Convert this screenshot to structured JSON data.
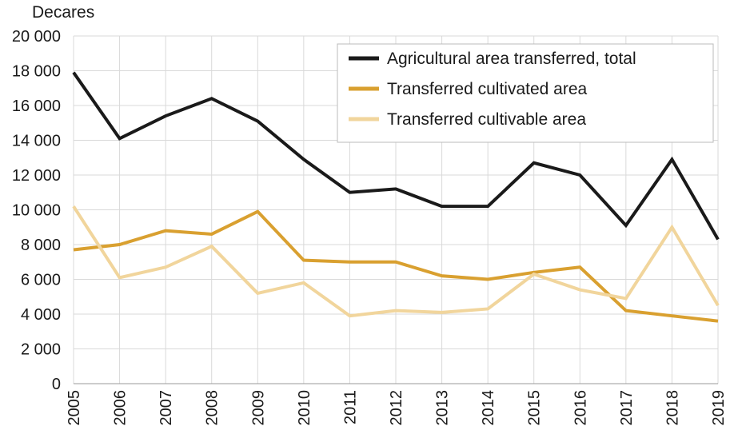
{
  "chart_data": {
    "type": "line",
    "title": "",
    "ylabel": "Decares",
    "xlabel": "",
    "x": [
      2005,
      2006,
      2007,
      2008,
      2009,
      2010,
      2011,
      2012,
      2013,
      2014,
      2015,
      2016,
      2017,
      2018,
      2019
    ],
    "ylim": [
      0,
      20000
    ],
    "yticks": [
      0,
      2000,
      4000,
      6000,
      8000,
      10000,
      12000,
      14000,
      16000,
      18000,
      20000
    ],
    "ytick_labels": [
      "0",
      "2 000",
      "4 000",
      "6 000",
      "8 000",
      "10 000",
      "12 000",
      "14 000",
      "16 000",
      "18 000",
      "20 000"
    ],
    "grid": true,
    "legend_position": "top-right",
    "series": [
      {
        "name": "Agricultural area transferred, total",
        "color": "#1a1a1a",
        "values": [
          17900,
          14100,
          15400,
          16400,
          15100,
          12900,
          11000,
          11200,
          10200,
          10200,
          12700,
          12000,
          9100,
          12900,
          8300
        ]
      },
      {
        "name": "Transferred cultivated area",
        "color": "#d9a030",
        "values": [
          7700,
          8000,
          8800,
          8600,
          9900,
          7100,
          7000,
          7000,
          6200,
          6000,
          6400,
          6700,
          4200,
          3900,
          3600
        ]
      },
      {
        "name": "Transferred cultivable area",
        "color": "#f1d59c",
        "values": [
          10200,
          6100,
          6700,
          7900,
          5200,
          5800,
          3900,
          4200,
          4100,
          4300,
          6300,
          5400,
          4900,
          9000,
          4500
        ]
      }
    ]
  }
}
